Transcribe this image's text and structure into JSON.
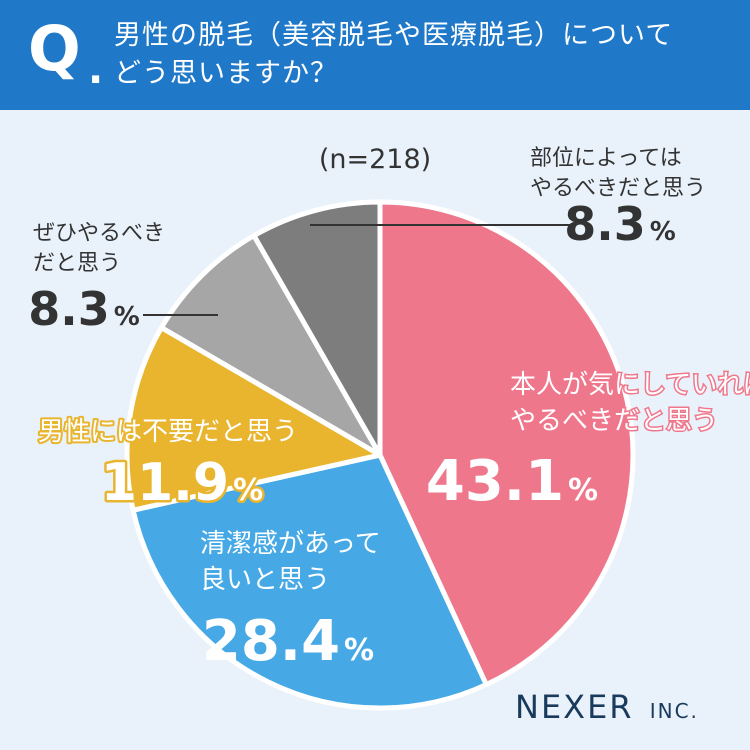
{
  "header": {
    "q_mark": "Q",
    "q_dot": ".",
    "question_line1": "男性の脱毛（美容脱毛や医療脱毛）について",
    "question_line2": "どう思いますか？"
  },
  "sample_size": "(n=218)",
  "brand": {
    "name": "NEXER",
    "suffix": "INC."
  },
  "colors": {
    "header_bg": "#1f78c8",
    "page_bg": "#e9f2fb",
    "pink": "#ef778c",
    "blue": "#46a9e5",
    "yellow": "#e9b52f",
    "light_gray": "#a6a6a6",
    "dark_gray": "#7d7d7d"
  },
  "chart_data": {
    "type": "pie",
    "start": "12 o'clock",
    "direction": "clockwise",
    "unit": "%",
    "slices": [
      {
        "label_lines": [
          "本人が気にしていれば",
          "やるべきだと思う"
        ],
        "value": 43.1,
        "value_text": "43.1",
        "color": "#ef778c"
      },
      {
        "label_lines": [
          "清潔感があって",
          "良いと思う"
        ],
        "value": 28.4,
        "value_text": "28.4",
        "color": "#46a9e5"
      },
      {
        "label_lines": [
          "男性には不要だと思う"
        ],
        "value": 11.9,
        "value_text": "11.9",
        "color": "#e9b52f"
      },
      {
        "label_lines": [
          "ぜひやるべき",
          "だと思う"
        ],
        "value": 8.3,
        "value_text": "8.3",
        "color": "#a6a6a6"
      },
      {
        "label_lines": [
          "部位によっては",
          "やるべきだと思う"
        ],
        "value": 8.3,
        "value_text": "8.3",
        "color": "#7d7d7d"
      }
    ]
  }
}
